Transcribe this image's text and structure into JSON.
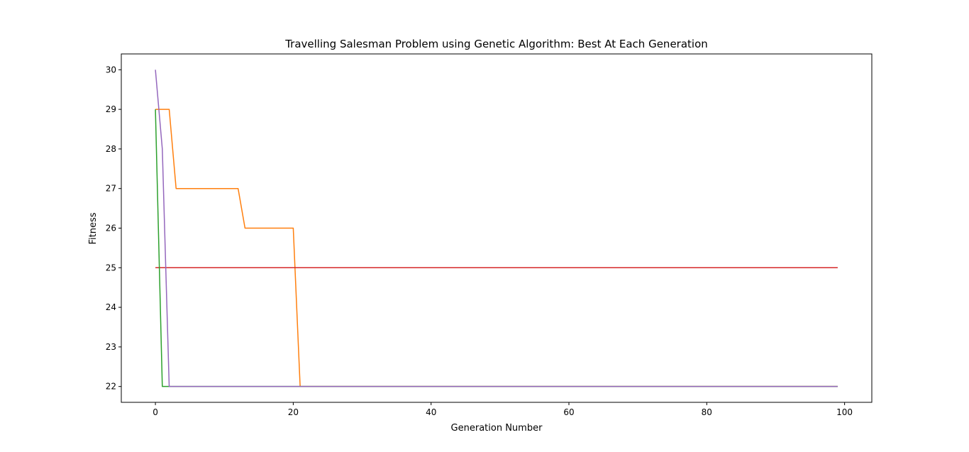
{
  "chart_data": {
    "type": "line",
    "title": "Travelling Salesman Problem using Genetic Algorithm: Best At Each Generation",
    "xlabel": "Generation Number",
    "ylabel": "Fitness",
    "xlim": [
      -4.95,
      103.95
    ],
    "ylim": [
      21.6,
      30.4
    ],
    "xticks": [
      0,
      20,
      40,
      60,
      80,
      100
    ],
    "yticks": [
      22,
      23,
      24,
      25,
      26,
      27,
      28,
      29,
      30
    ],
    "grid": false,
    "legend": "none",
    "series": [
      {
        "color": "#ff7f0e",
        "points": [
          [
            0,
            29
          ],
          [
            2,
            29
          ],
          [
            3,
            27
          ],
          [
            12,
            27
          ],
          [
            13,
            26
          ],
          [
            20,
            26
          ],
          [
            21,
            22
          ],
          [
            99,
            22
          ]
        ]
      },
      {
        "color": "#d62728",
        "points": [
          [
            0,
            25
          ],
          [
            99,
            25
          ]
        ]
      },
      {
        "color": "#2ca02c",
        "points": [
          [
            0,
            29
          ],
          [
            1,
            22
          ],
          [
            99,
            22
          ]
        ]
      },
      {
        "color": "#9467bd",
        "points": [
          [
            0,
            30
          ],
          [
            1,
            28
          ],
          [
            2,
            22
          ],
          [
            99,
            22
          ]
        ]
      }
    ]
  }
}
